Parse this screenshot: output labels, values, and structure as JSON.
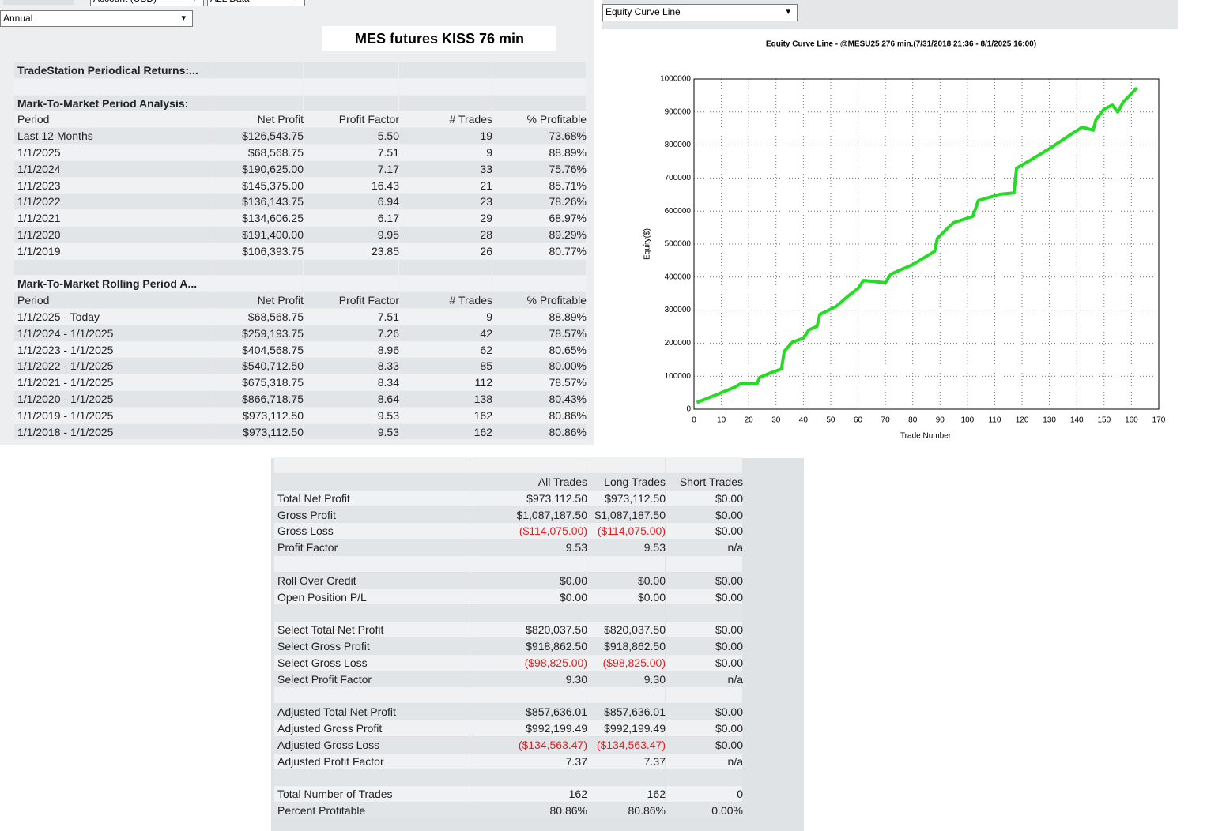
{
  "toolbar": {
    "account": "Account (USD)",
    "range": "ALL Data",
    "period": "Annual"
  },
  "title_box": "MES futures KISS 76 min",
  "periodical": {
    "title": "TradeStation Periodical Returns:...",
    "sections": [
      {
        "title": "Mark-To-Market Period Analysis:",
        "columns": [
          "Period",
          "Net Profit",
          "Profit Factor",
          "# Trades",
          "% Profitable"
        ],
        "rows": [
          [
            "Last 12 Months",
            "$126,543.75",
            "5.50",
            "19",
            "73.68%"
          ],
          [
            "1/1/2025",
            "$68,568.75",
            "7.51",
            "9",
            "88.89%"
          ],
          [
            "1/1/2024",
            "$190,625.00",
            "7.17",
            "33",
            "75.76%"
          ],
          [
            "1/1/2023",
            "$145,375.00",
            "16.43",
            "21",
            "85.71%"
          ],
          [
            "1/1/2022",
            "$136,143.75",
            "6.94",
            "23",
            "78.26%"
          ],
          [
            "1/1/2021",
            "$134,606.25",
            "6.17",
            "29",
            "68.97%"
          ],
          [
            "1/1/2020",
            "$191,400.00",
            "9.95",
            "28",
            "89.29%"
          ],
          [
            "1/1/2019",
            "$106,393.75",
            "23.85",
            "26",
            "80.77%"
          ]
        ]
      },
      {
        "title": "Mark-To-Market Rolling Period A...",
        "columns": [
          "Period",
          "Net Profit",
          "Profit Factor",
          "# Trades",
          "% Profitable"
        ],
        "rows": [
          [
            "1/1/2025 - Today",
            "$68,568.75",
            "7.51",
            "9",
            "88.89%"
          ],
          [
            "1/1/2024 - 1/1/2025",
            "$259,193.75",
            "7.26",
            "42",
            "78.57%"
          ],
          [
            "1/1/2023 - 1/1/2025",
            "$404,568.75",
            "8.96",
            "62",
            "80.65%"
          ],
          [
            "1/1/2022 - 1/1/2025",
            "$540,712.50",
            "8.33",
            "85",
            "80.00%"
          ],
          [
            "1/1/2021 - 1/1/2025",
            "$675,318.75",
            "8.34",
            "112",
            "78.57%"
          ],
          [
            "1/1/2020 - 1/1/2025",
            "$866,718.75",
            "8.64",
            "138",
            "80.43%"
          ],
          [
            "1/1/2019 - 1/1/2025",
            "$973,112.50",
            "9.53",
            "162",
            "80.86%"
          ],
          [
            "1/1/2018 - 1/1/2025",
            "$973,112.50",
            "9.53",
            "162",
            "80.86%"
          ]
        ]
      }
    ]
  },
  "chart_dropdown": "Equity Curve Line",
  "chart_data": {
    "type": "line",
    "title": "Equity Curve Line - @MESU25 276 min.(7/31/2018 21:36 - 8/1/2025 16:00)",
    "xlabel": "Trade Number",
    "ylabel": "Equity($)",
    "color": "#22dd22",
    "x": [
      1,
      10,
      15,
      17,
      23,
      24,
      28,
      32,
      33,
      36,
      40,
      42,
      45,
      46,
      52,
      56,
      60,
      62,
      70,
      72,
      80,
      88,
      89,
      93,
      95,
      102,
      104,
      112,
      117,
      118,
      122,
      130,
      138,
      142,
      146,
      147,
      150,
      153,
      155,
      157,
      162
    ],
    "values": [
      20000,
      50000,
      67000,
      77000,
      77000,
      96000,
      110000,
      122000,
      175000,
      203000,
      215000,
      240000,
      251000,
      287000,
      311000,
      340000,
      366000,
      390000,
      383000,
      409000,
      438000,
      478000,
      517000,
      550000,
      565000,
      584000,
      632000,
      651000,
      655000,
      730000,
      749000,
      789000,
      833000,
      854000,
      845000,
      876000,
      909000,
      921000,
      900000,
      930000,
      973000
    ],
    "xlim": [
      0,
      170
    ],
    "xticks": [
      0,
      10,
      20,
      30,
      40,
      50,
      60,
      70,
      80,
      90,
      100,
      110,
      120,
      130,
      140,
      150,
      160,
      170
    ],
    "ylim": [
      0,
      1000000
    ],
    "yticks": [
      0,
      100000,
      200000,
      300000,
      400000,
      500000,
      600000,
      700000,
      800000,
      900000,
      1000000
    ],
    "grid": true
  },
  "summary": {
    "columns": [
      "All Trades",
      "Long Trades",
      "Short Trades"
    ],
    "groups": [
      [
        [
          "Total Net Profit",
          "$973,112.50",
          "$973,112.50",
          "$0.00"
        ],
        [
          "Gross Profit",
          "$1,087,187.50",
          "$1,087,187.50",
          "$0.00"
        ],
        [
          "Gross Loss",
          "($114,075.00)",
          "($114,075.00)",
          "$0.00"
        ],
        [
          "Profit Factor",
          "9.53",
          "9.53",
          "n/a"
        ]
      ],
      [
        [
          "Roll Over Credit",
          "$0.00",
          "$0.00",
          "$0.00"
        ],
        [
          "Open Position P/L",
          "$0.00",
          "$0.00",
          "$0.00"
        ]
      ],
      [
        [
          "Select Total Net Profit",
          "$820,037.50",
          "$820,037.50",
          "$0.00"
        ],
        [
          "Select Gross Profit",
          "$918,862.50",
          "$918,862.50",
          "$0.00"
        ],
        [
          "Select Gross Loss",
          "($98,825.00)",
          "($98,825.00)",
          "$0.00"
        ],
        [
          "Select Profit Factor",
          "9.30",
          "9.30",
          "n/a"
        ]
      ],
      [
        [
          "Adjusted Total Net Profit",
          "$857,636.01",
          "$857,636.01",
          "$0.00"
        ],
        [
          "Adjusted Gross Profit",
          "$992,199.49",
          "$992,199.49",
          "$0.00"
        ],
        [
          "Adjusted Gross Loss",
          "($134,563.47)",
          "($134,563.47)",
          "$0.00"
        ],
        [
          "Adjusted Profit Factor",
          "7.37",
          "7.37",
          "n/a"
        ]
      ],
      [
        [
          "Total Number of Trades",
          "162",
          "162",
          "0"
        ],
        [
          "Percent Profitable",
          "80.86%",
          "80.86%",
          "0.00%"
        ]
      ]
    ]
  }
}
